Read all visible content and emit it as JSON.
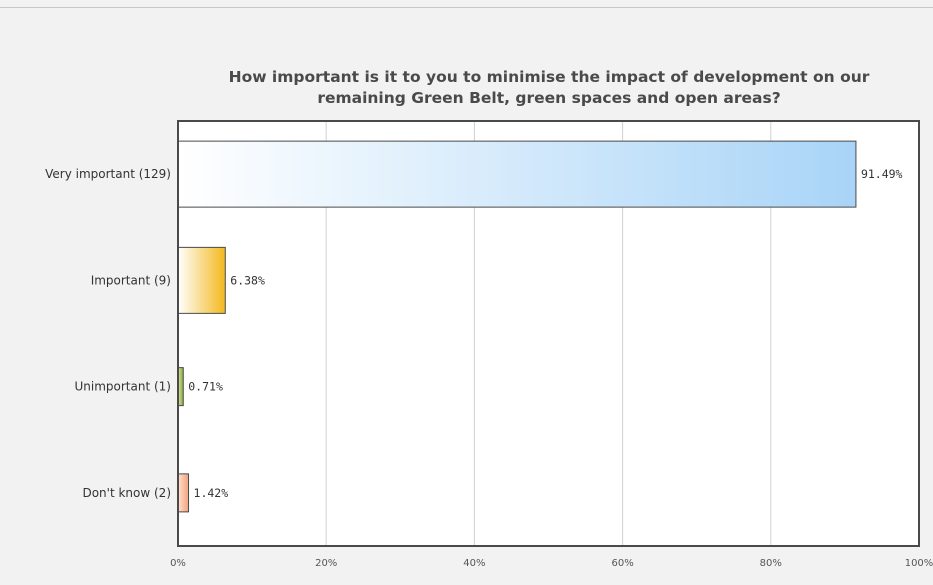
{
  "chart_data": {
    "type": "bar",
    "orientation": "horizontal",
    "title": "How important is it to you to minimise the impact of development on our remaining Green Belt, green spaces and open areas?",
    "title_lines": [
      "How important is it to you to minimise the impact of development on our",
      "remaining Green Belt, green spaces and open areas?"
    ],
    "categories": [
      "Very important (129)",
      "Important (9)",
      "Unimportant (1)",
      "Don't know (2)"
    ],
    "values": [
      91.49,
      6.38,
      0.71,
      1.42
    ],
    "value_labels": [
      "91.49%",
      "6.38%",
      "0.71%",
      "1.42%"
    ],
    "bar_colors": [
      {
        "from": "#ffffff",
        "to": "#a8d4f7"
      },
      {
        "from": "#ffffff",
        "to": "#f2b81c"
      },
      {
        "from": "#d5e6a0",
        "to": "#8aa83a"
      },
      {
        "from": "#ffe2d2",
        "to": "#f4a27c"
      }
    ],
    "xlim": [
      0,
      100
    ],
    "x_ticks": [
      0,
      20,
      40,
      60,
      80,
      100
    ],
    "x_tick_labels": [
      "0%",
      "20%",
      "40%",
      "60%",
      "80%",
      "100%"
    ],
    "grid": true,
    "legend": "none"
  }
}
